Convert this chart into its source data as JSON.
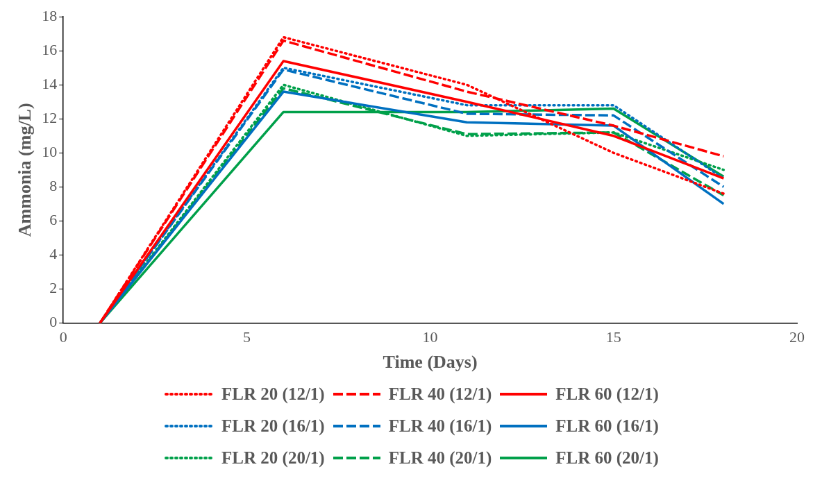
{
  "chart_data": {
    "type": "line",
    "xlabel": "Time (Days)",
    "ylabel": "Ammonia (mg/L)",
    "x": [
      1,
      6,
      11,
      15,
      18
    ],
    "xlim": [
      0,
      20
    ],
    "xticks": [
      0,
      5,
      10,
      15,
      20
    ],
    "ylim": [
      0,
      18
    ],
    "yticks": [
      0,
      2,
      4,
      6,
      8,
      10,
      12,
      14,
      16,
      18
    ],
    "grid": false,
    "legend": "bottom",
    "marker": "none",
    "series": [
      {
        "name": "FLR 20 (12/1)",
        "color": "#ff0000",
        "line_style": "dotted",
        "values": [
          0,
          16.8,
          14.0,
          10.0,
          7.6
        ]
      },
      {
        "name": "FLR 40 (12/1)",
        "color": "#ff0000",
        "line_style": "dashed",
        "values": [
          0,
          16.6,
          13.6,
          11.6,
          9.8
        ]
      },
      {
        "name": "FLR 60 (12/1)",
        "color": "#ff0000",
        "line_style": "solid",
        "values": [
          0,
          15.4,
          13.0,
          11.0,
          8.5
        ]
      },
      {
        "name": "FLR 20 (16/1)",
        "color": "#0070c0",
        "line_style": "dotted",
        "values": [
          0,
          15.0,
          12.8,
          12.8,
          8.5
        ]
      },
      {
        "name": "FLR 40 (16/1)",
        "color": "#0070c0",
        "line_style": "dashed",
        "values": [
          0,
          14.9,
          12.3,
          12.2,
          8.0
        ]
      },
      {
        "name": "FLR 60 (16/1)",
        "color": "#0070c0",
        "line_style": "solid",
        "values": [
          0,
          13.6,
          11.8,
          11.6,
          7.0
        ]
      },
      {
        "name": "FLR 20 (20/1)",
        "color": "#00a04a",
        "line_style": "dotted",
        "values": [
          0,
          14.0,
          11.0,
          11.2,
          9.0
        ]
      },
      {
        "name": "FLR 40 (20/1)",
        "color": "#00a04a",
        "line_style": "dashed",
        "values": [
          0,
          13.8,
          11.1,
          11.2,
          7.5
        ]
      },
      {
        "name": "FLR 60 (20/1)",
        "color": "#00a04a",
        "line_style": "solid",
        "values": [
          0,
          12.4,
          12.4,
          12.6,
          8.6
        ]
      }
    ]
  }
}
